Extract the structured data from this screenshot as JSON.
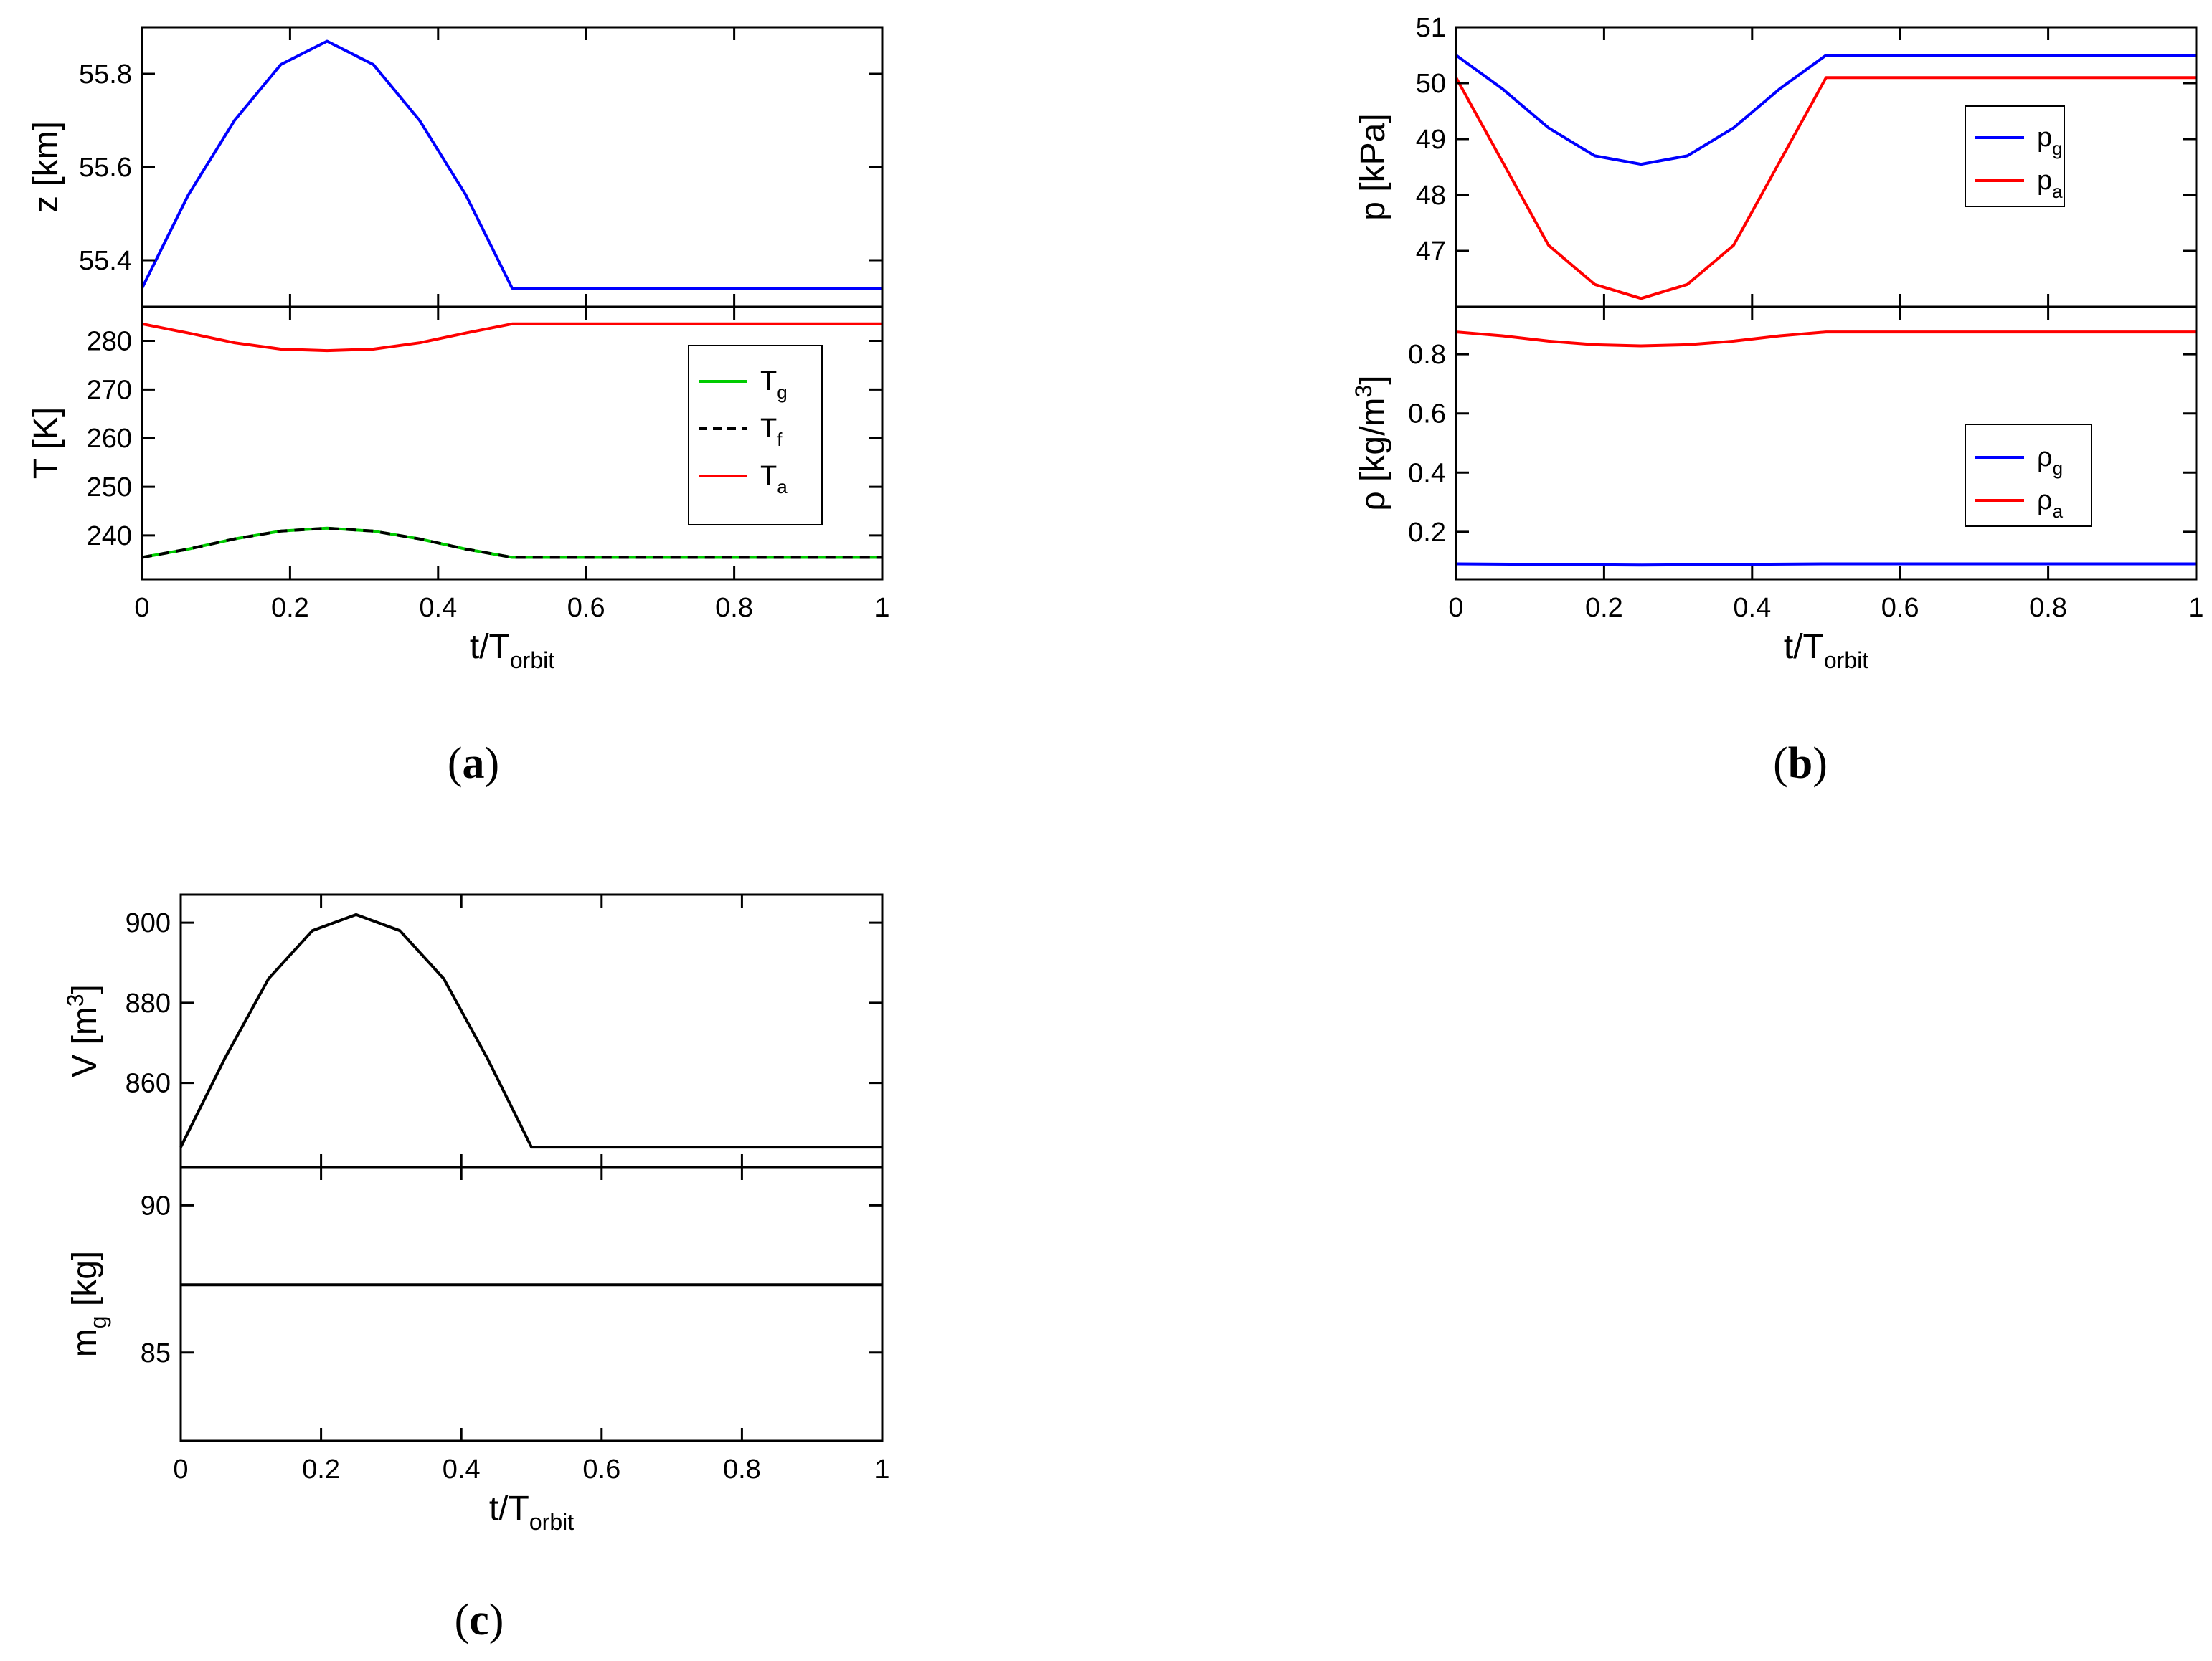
{
  "captions": {
    "a": "a",
    "b": "b",
    "c": "c"
  },
  "chart_data": [
    {
      "id": "a-top",
      "type": "line",
      "ylim": [
        55.3,
        55.9
      ],
      "xlim": [
        0,
        1
      ],
      "ylabel": "z [km]",
      "xticks": [],
      "yticks": [
        55.4,
        55.6,
        55.8
      ],
      "ytick_labels": [
        "55.4",
        "55.6",
        "55.8"
      ],
      "series": [
        {
          "name": "z",
          "color": "#0000ff",
          "dash": false,
          "points": [
            [
              0,
              55.34
            ],
            [
              0.0625,
              55.54
            ],
            [
              0.125,
              55.7
            ],
            [
              0.1875,
              55.82
            ],
            [
              0.25,
              55.87
            ],
            [
              0.3125,
              55.82
            ],
            [
              0.375,
              55.7
            ],
            [
              0.4375,
              55.54
            ],
            [
              0.5,
              55.34
            ],
            [
              1.0,
              55.34
            ]
          ]
        }
      ]
    },
    {
      "id": "a-bottom",
      "type": "line",
      "ylim": [
        231,
        287
      ],
      "xlim": [
        0,
        1
      ],
      "ylabel": "T [K]",
      "xlabel": "t/T",
      "xlabel_sub": "orbit",
      "xticks": [
        0,
        0.2,
        0.4,
        0.6,
        0.8,
        1
      ],
      "xtick_labels": [
        "0",
        "0.2",
        "0.4",
        "0.6",
        "0.8",
        "1"
      ],
      "yticks": [
        240,
        250,
        260,
        270,
        280
      ],
      "ytick_labels": [
        "240",
        "250",
        "260",
        "270",
        "280"
      ],
      "legend": {
        "placement": "top-right",
        "entries": [
          {
            "label": "T",
            "sub": "g",
            "color": "#00cc00",
            "dash": false
          },
          {
            "label": "T",
            "sub": "f",
            "color": "#000000",
            "dash": true
          },
          {
            "label": "T",
            "sub": "a",
            "color": "#ff0000",
            "dash": false
          }
        ]
      },
      "series": [
        {
          "name": "T_g",
          "color": "#00cc00",
          "dash": false,
          "points": [
            [
              0,
              235.5
            ],
            [
              0.0625,
              237.2
            ],
            [
              0.125,
              239.3
            ],
            [
              0.1875,
              240.9
            ],
            [
              0.25,
              241.5
            ],
            [
              0.3125,
              240.9
            ],
            [
              0.375,
              239.3
            ],
            [
              0.4375,
              237.2
            ],
            [
              0.5,
              235.5
            ],
            [
              1.0,
              235.5
            ]
          ]
        },
        {
          "name": "T_f",
          "color": "#000000",
          "dash": true,
          "points": [
            [
              0,
              235.5
            ],
            [
              0.0625,
              237.2
            ],
            [
              0.125,
              239.3
            ],
            [
              0.1875,
              240.9
            ],
            [
              0.25,
              241.5
            ],
            [
              0.3125,
              240.9
            ],
            [
              0.375,
              239.3
            ],
            [
              0.4375,
              237.2
            ],
            [
              0.5,
              235.5
            ],
            [
              1.0,
              235.5
            ]
          ]
        },
        {
          "name": "T_a",
          "color": "#ff0000",
          "dash": false,
          "points": [
            [
              0,
              283.5
            ],
            [
              0.0625,
              281.6
            ],
            [
              0.125,
              279.6
            ],
            [
              0.1875,
              278.3
            ],
            [
              0.25,
              278.0
            ],
            [
              0.3125,
              278.3
            ],
            [
              0.375,
              279.6
            ],
            [
              0.4375,
              281.6
            ],
            [
              0.5,
              283.5
            ],
            [
              1.0,
              283.5
            ]
          ]
        }
      ]
    },
    {
      "id": "b-top",
      "type": "line",
      "ylim": [
        46.0,
        51.0
      ],
      "xlim": [
        0,
        1
      ],
      "ylabel": "p [kPa]",
      "xticks": [],
      "yticks": [
        47,
        48,
        49,
        50,
        51
      ],
      "ytick_labels": [
        "47",
        "48",
        "49",
        "50",
        "51"
      ],
      "legend": {
        "placement": "top-right",
        "entries": [
          {
            "label": "p",
            "sub": "g",
            "color": "#0000ff",
            "dash": false
          },
          {
            "label": "p",
            "sub": "a",
            "color": "#ff0000",
            "dash": false
          }
        ]
      },
      "series": [
        {
          "name": "p_g",
          "color": "#0000ff",
          "dash": false,
          "points": [
            [
              0,
              50.5
            ],
            [
              0.0625,
              49.9
            ],
            [
              0.125,
              49.2
            ],
            [
              0.1875,
              48.7
            ],
            [
              0.25,
              48.55
            ],
            [
              0.3125,
              48.7
            ],
            [
              0.375,
              49.2
            ],
            [
              0.4375,
              49.9
            ],
            [
              0.5,
              50.5
            ],
            [
              1.0,
              50.5
            ]
          ]
        },
        {
          "name": "p_a",
          "color": "#ff0000",
          "dash": false,
          "points": [
            [
              0,
              50.1
            ],
            [
              0.0625,
              48.6
            ],
            [
              0.125,
              47.1
            ],
            [
              0.1875,
              46.4
            ],
            [
              0.25,
              46.15
            ],
            [
              0.3125,
              46.4
            ],
            [
              0.375,
              47.1
            ],
            [
              0.4375,
              48.6
            ],
            [
              0.5,
              50.1
            ],
            [
              1.0,
              50.1
            ]
          ]
        }
      ]
    },
    {
      "id": "b-bottom",
      "type": "line",
      "ylim": [
        0.04,
        0.96
      ],
      "xlim": [
        0,
        1
      ],
      "ylabel": "ρ [kg/m",
      "ylabel_sup": "3",
      "ylabel_end": "]",
      "xlabel": "t/T",
      "xlabel_sub": "orbit",
      "xticks": [
        0,
        0.2,
        0.4,
        0.6,
        0.8,
        1
      ],
      "xtick_labels": [
        "0",
        "0.2",
        "0.4",
        "0.6",
        "0.8",
        "1"
      ],
      "yticks": [
        0.2,
        0.4,
        0.6,
        0.8
      ],
      "ytick_labels": [
        "0.2",
        "0.4",
        "0.6",
        "0.8"
      ],
      "legend": {
        "placement": "right",
        "entries": [
          {
            "label": "ρ",
            "sub": "g",
            "color": "#0000ff",
            "dash": false
          },
          {
            "label": "ρ",
            "sub": "a",
            "color": "#ff0000",
            "dash": false
          }
        ]
      },
      "series": [
        {
          "name": "rho_g",
          "color": "#0000ff",
          "dash": false,
          "points": [
            [
              0,
              0.092
            ],
            [
              0.25,
              0.088
            ],
            [
              0.5,
              0.092
            ],
            [
              1.0,
              0.092
            ]
          ]
        },
        {
          "name": "rho_a",
          "color": "#ff0000",
          "dash": false,
          "points": [
            [
              0,
              0.875
            ],
            [
              0.0625,
              0.862
            ],
            [
              0.125,
              0.844
            ],
            [
              0.1875,
              0.832
            ],
            [
              0.25,
              0.828
            ],
            [
              0.3125,
              0.832
            ],
            [
              0.375,
              0.844
            ],
            [
              0.4375,
              0.862
            ],
            [
              0.5,
              0.875
            ],
            [
              1.0,
              0.875
            ]
          ]
        }
      ]
    },
    {
      "id": "c-top",
      "type": "line",
      "ylim": [
        839,
        907
      ],
      "xlim": [
        0,
        1
      ],
      "ylabel": "V [m",
      "ylabel_sup": "3",
      "ylabel_end": "]",
      "xticks": [],
      "yticks": [
        860,
        880,
        900
      ],
      "ytick_labels": [
        "860",
        "880",
        "900"
      ],
      "series": [
        {
          "name": "V",
          "color": "#000000",
          "dash": false,
          "points": [
            [
              0,
              844
            ],
            [
              0.0625,
              866
            ],
            [
              0.125,
              886
            ],
            [
              0.1875,
              898
            ],
            [
              0.25,
              902
            ],
            [
              0.3125,
              898
            ],
            [
              0.375,
              886
            ],
            [
              0.4375,
              866
            ],
            [
              0.5,
              844
            ],
            [
              1.0,
              844
            ]
          ]
        }
      ]
    },
    {
      "id": "c-bottom",
      "type": "line",
      "ylim": [
        82,
        91.3
      ],
      "xlim": [
        0,
        1
      ],
      "ylabel": "m",
      "ylabel_sub": "g",
      "ylabel_end": " [kg]",
      "xlabel": "t/T",
      "xlabel_sub": "orbit",
      "xticks": [
        0,
        0.2,
        0.4,
        0.6,
        0.8,
        1
      ],
      "xtick_labels": [
        "0",
        "0.2",
        "0.4",
        "0.6",
        "0.8",
        "1"
      ],
      "yticks": [
        85,
        90
      ],
      "ytick_labels": [
        "85",
        "90"
      ],
      "series": [
        {
          "name": "m_g",
          "color": "#000000",
          "dash": false,
          "points": [
            [
              0,
              87.3
            ],
            [
              1.0,
              87.3
            ]
          ]
        }
      ]
    }
  ]
}
